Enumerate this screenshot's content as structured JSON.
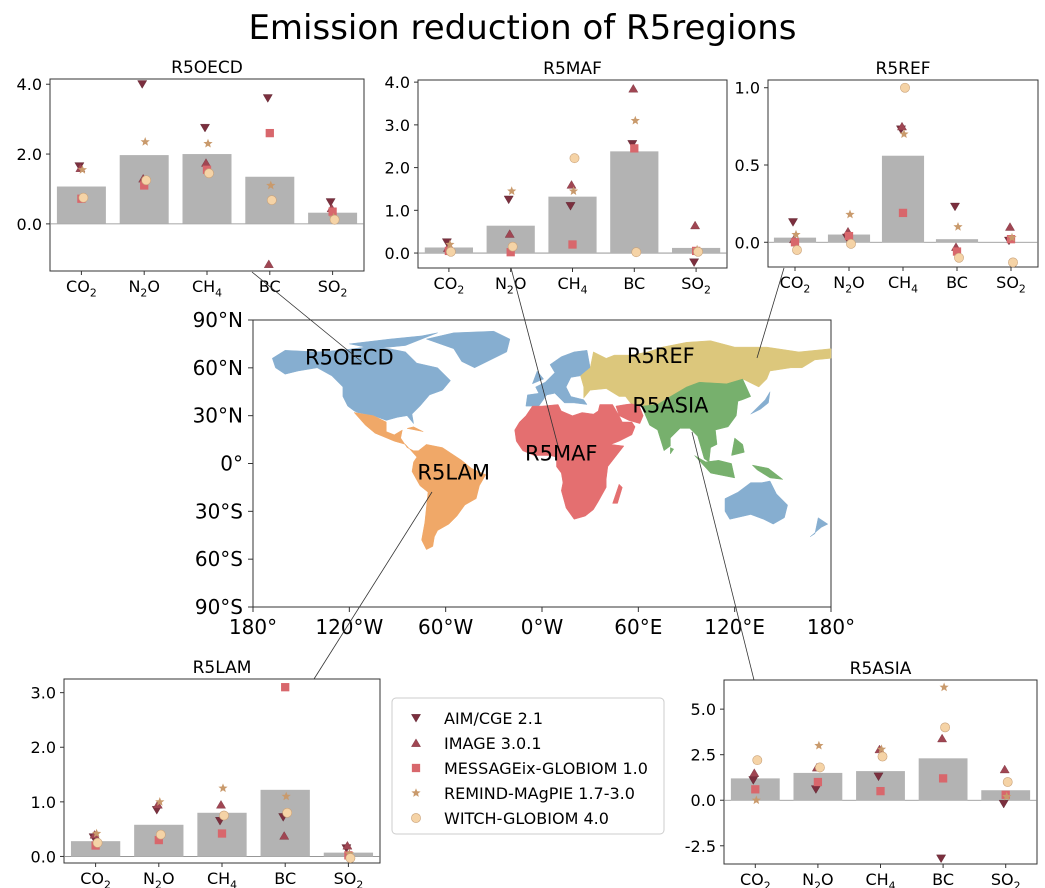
{
  "title": "Emission reduction of R5regions",
  "chart_data": [
    {
      "type": "bar",
      "region": "R5OECD",
      "title": "R5OECD",
      "categories": [
        "CO2",
        "N2O",
        "CH4",
        "BC",
        "SO2"
      ],
      "ylim": [
        -1.35,
        4.15
      ],
      "yticks": [
        0.0,
        2.0,
        4.0
      ],
      "ytick_labels": [
        "0.0",
        "2.0",
        "4.0"
      ],
      "bars": [
        1.07,
        1.97,
        2.0,
        1.35,
        0.32
      ],
      "models": {
        "AIM/CGE 2.1": [
          1.65,
          4.0,
          2.75,
          3.6,
          0.62
        ],
        "IMAGE 3.0.1": [
          1.6,
          1.3,
          1.75,
          -1.15,
          0.45
        ],
        "MESSAGEix-GLOBIOM 1.0": [
          0.72,
          1.1,
          1.55,
          2.6,
          0.35
        ],
        "REMIND-MAgPIE 1.7-3.0": [
          1.55,
          2.35,
          2.3,
          1.1,
          0.18
        ],
        "WITCH-GLOBIOM 4.0": [
          0.75,
          1.25,
          1.45,
          0.68,
          0.12
        ]
      }
    },
    {
      "type": "bar",
      "region": "R5MAF",
      "title": "R5MAF",
      "categories": [
        "CO2",
        "N2O",
        "CH4",
        "BC",
        "SO2"
      ],
      "ylim": [
        -0.35,
        4.05
      ],
      "yticks": [
        0.0,
        1.0,
        2.0,
        3.0,
        4.0
      ],
      "ytick_labels": [
        "0.0",
        "1.0",
        "2.0",
        "3.0",
        "4.0"
      ],
      "bars": [
        0.13,
        0.64,
        1.32,
        2.38,
        0.12
      ],
      "models": {
        "AIM/CGE 2.1": [
          0.25,
          1.25,
          1.1,
          2.55,
          -0.22
        ],
        "IMAGE 3.0.1": [
          0.12,
          0.45,
          1.6,
          3.85,
          0.65
        ],
        "MESSAGEix-GLOBIOM 1.0": [
          0.05,
          0.02,
          0.2,
          2.45,
          0.05
        ],
        "REMIND-MAgPIE 1.7-3.0": [
          0.2,
          1.45,
          1.45,
          3.1,
          0.08
        ],
        "WITCH-GLOBIOM 4.0": [
          0.03,
          0.15,
          2.22,
          0.02,
          0.03
        ]
      }
    },
    {
      "type": "bar",
      "region": "R5REF",
      "title": "R5REF",
      "categories": [
        "CO2",
        "N2O",
        "CH4",
        "BC",
        "SO2"
      ],
      "ylim": [
        -0.16,
        1.05
      ],
      "yticks": [
        0.0,
        0.5,
        1.0
      ],
      "ytick_labels": [
        "0.0",
        "0.5",
        "1.0"
      ],
      "bars": [
        0.03,
        0.05,
        0.56,
        0.02,
        0.0
      ],
      "models": {
        "AIM/CGE 2.1": [
          0.13,
          0.03,
          0.73,
          0.23,
          0.01
        ],
        "IMAGE 3.0.1": [
          0.02,
          0.07,
          0.75,
          -0.03,
          0.1
        ],
        "MESSAGEix-GLOBIOM 1.0": [
          0.0,
          0.04,
          0.19,
          -0.06,
          0.02
        ],
        "REMIND-MAgPIE 1.7-3.0": [
          0.05,
          0.18,
          0.7,
          0.1,
          0.03
        ],
        "WITCH-GLOBIOM 4.0": [
          -0.05,
          -0.01,
          1.0,
          -0.1,
          -0.13
        ]
      }
    },
    {
      "type": "bar",
      "region": "R5LAM",
      "title": "R5LAM",
      "categories": [
        "CO2",
        "N2O",
        "CH4",
        "BC",
        "SO2"
      ],
      "ylim": [
        -0.12,
        3.25
      ],
      "yticks": [
        0.0,
        1.0,
        2.0,
        3.0
      ],
      "ytick_labels": [
        "0.0",
        "1.0",
        "2.0",
        "3.0"
      ],
      "bars": [
        0.28,
        0.58,
        0.8,
        1.22,
        0.07
      ],
      "models": {
        "AIM/CGE 2.1": [
          0.35,
          0.85,
          0.65,
          0.72,
          0.15
        ],
        "IMAGE 3.0.1": [
          0.4,
          0.95,
          0.95,
          0.38,
          0.2
        ],
        "MESSAGEix-GLOBIOM 1.0": [
          0.2,
          0.3,
          0.42,
          3.1,
          0.02
        ],
        "REMIND-MAgPIE 1.7-3.0": [
          0.42,
          1.0,
          1.25,
          1.1,
          0.05
        ],
        "WITCH-GLOBIOM 4.0": [
          0.25,
          0.4,
          0.75,
          0.8,
          -0.03
        ]
      }
    },
    {
      "type": "bar",
      "region": "R5ASIA",
      "title": "R5ASIA",
      "categories": [
        "CO2",
        "N2O",
        "CH4",
        "BC",
        "SO2"
      ],
      "ylim": [
        -3.5,
        6.6
      ],
      "yticks": [
        -2.5,
        0.0,
        2.5,
        5.0
      ],
      "ytick_labels": [
        "-2.5",
        "0.0",
        "2.5",
        "5.0"
      ],
      "bars": [
        1.2,
        1.5,
        1.6,
        2.3,
        0.55
      ],
      "models": {
        "AIM/CGE 2.1": [
          1.1,
          0.6,
          1.3,
          -3.2,
          -0.2
        ],
        "IMAGE 3.0.1": [
          1.5,
          1.8,
          2.8,
          3.4,
          1.7
        ],
        "MESSAGEix-GLOBIOM 1.0": [
          0.6,
          1.0,
          0.5,
          1.2,
          0.3
        ],
        "REMIND-MAgPIE 1.7-3.0": [
          0.0,
          3.0,
          2.8,
          6.2,
          0.2
        ],
        "WITCH-GLOBIOM 4.0": [
          2.2,
          1.8,
          2.4,
          4.0,
          1.0
        ]
      }
    }
  ],
  "legend": {
    "placement": "center",
    "entries": [
      {
        "label": "AIM/CGE 2.1",
        "marker": "triangle-down",
        "color": "#7b2f3e"
      },
      {
        "label": "IMAGE 3.0.1",
        "marker": "triangle-up",
        "color": "#a04653"
      },
      {
        "label": "MESSAGEix-GLOBIOM 1.0",
        "marker": "square",
        "color": "#d8676c"
      },
      {
        "label": "REMIND-MAgPIE 1.7-3.0",
        "marker": "star",
        "color": "#c99a6c"
      },
      {
        "label": "WITCH-GLOBIOM 4.0",
        "marker": "circle",
        "color": "#f5d3a6"
      }
    ]
  },
  "map": {
    "lat_ticks": [
      "90°N",
      "60°N",
      "30°N",
      "0°",
      "30°S",
      "60°S",
      "90°S"
    ],
    "lon_ticks": [
      "180°",
      "120°W",
      "60°W",
      "0°W",
      "60°E",
      "120°E",
      "180°"
    ],
    "regions": [
      {
        "label": "R5OECD",
        "color": "#86aed0"
      },
      {
        "label": "R5REF",
        "color": "#dcc77c"
      },
      {
        "label": "R5ASIA",
        "color": "#77b06d"
      },
      {
        "label": "R5MAF",
        "color": "#e46f70"
      },
      {
        "label": "R5LAM",
        "color": "#f0a868"
      }
    ]
  },
  "colors": {
    "bar": "#b3b3b3",
    "axis": "#333333"
  }
}
